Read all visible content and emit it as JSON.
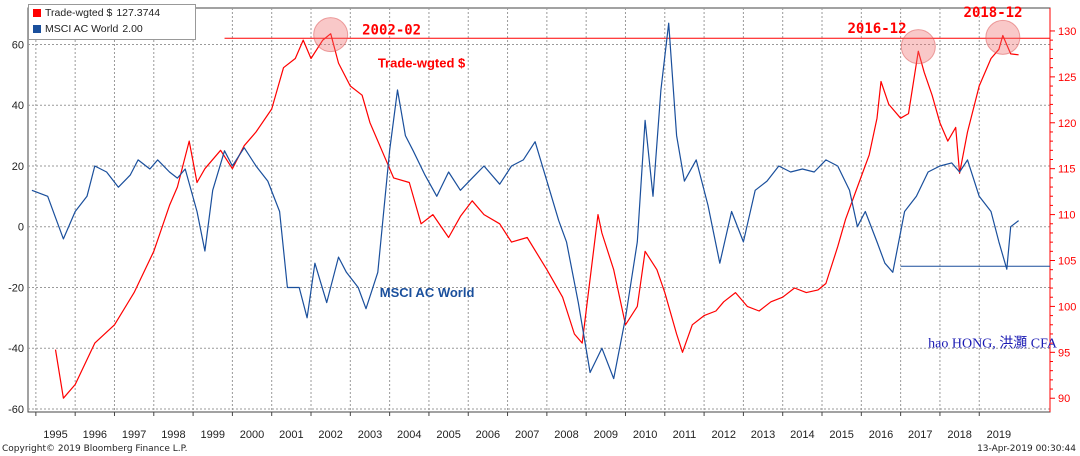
{
  "chart_data": {
    "type": "line",
    "legend": [
      {
        "label": "Trade-wgted $",
        "value": "127.3744",
        "color": "#ff0000"
      },
      {
        "label": "MSCI AC World",
        "value": "2.00",
        "color": "#1a4f9c"
      }
    ],
    "x_ticks": [
      "1995",
      "1996",
      "1997",
      "1998",
      "1999",
      "2000",
      "2001",
      "2002",
      "2003",
      "2004",
      "2005",
      "2006",
      "2007",
      "2008",
      "2009",
      "2010",
      "2011",
      "2012",
      "2013",
      "2014",
      "2015",
      "2016",
      "2017",
      "2018",
      "2019"
    ],
    "xlim": [
      1994.3,
      2020.3
    ],
    "left_axis": {
      "ticks": [
        -60,
        -40,
        -20,
        0,
        20,
        40,
        60
      ],
      "ylim": [
        -61,
        72
      ]
    },
    "right_axis": {
      "ticks": [
        90,
        95,
        100,
        105,
        110,
        115,
        120,
        125,
        130
      ],
      "ylim": [
        88.5,
        132.5
      ]
    },
    "series": [
      {
        "name": "Trade-wgted $",
        "axis": "right",
        "color": "#ff0000",
        "points": [
          [
            1995.0,
            95.3
          ],
          [
            1995.2,
            90.0
          ],
          [
            1995.5,
            91.5
          ],
          [
            1996.0,
            96
          ],
          [
            1996.5,
            98
          ],
          [
            1997.0,
            101.5
          ],
          [
            1997.5,
            106
          ],
          [
            1997.9,
            111
          ],
          [
            1998.1,
            113
          ],
          [
            1998.4,
            118
          ],
          [
            1998.6,
            113.5
          ],
          [
            1998.8,
            115
          ],
          [
            1999.2,
            117
          ],
          [
            1999.5,
            115
          ],
          [
            1999.8,
            117.5
          ],
          [
            2000.1,
            119
          ],
          [
            2000.5,
            121.5
          ],
          [
            2000.8,
            126
          ],
          [
            2001.1,
            127
          ],
          [
            2001.3,
            129
          ],
          [
            2001.5,
            127
          ],
          [
            2001.8,
            129
          ],
          [
            2002.0,
            129.7
          ],
          [
            2002.2,
            126.5
          ],
          [
            2002.5,
            124
          ],
          [
            2002.8,
            123
          ],
          [
            2003.0,
            120
          ],
          [
            2003.3,
            117
          ],
          [
            2003.6,
            114
          ],
          [
            2004.0,
            113.5
          ],
          [
            2004.3,
            109
          ],
          [
            2004.6,
            110
          ],
          [
            2005.0,
            107.5
          ],
          [
            2005.3,
            109.8
          ],
          [
            2005.6,
            111.5
          ],
          [
            2005.9,
            110
          ],
          [
            2006.3,
            109
          ],
          [
            2006.6,
            107
          ],
          [
            2007.0,
            107.5
          ],
          [
            2007.5,
            104
          ],
          [
            2007.9,
            101
          ],
          [
            2008.2,
            97
          ],
          [
            2008.4,
            96
          ],
          [
            2008.8,
            110
          ],
          [
            2008.9,
            108
          ],
          [
            2009.2,
            104
          ],
          [
            2009.5,
            98
          ],
          [
            2009.8,
            100
          ],
          [
            2010.0,
            106
          ],
          [
            2010.3,
            104
          ],
          [
            2010.5,
            101.5
          ],
          [
            2010.8,
            97
          ],
          [
            2010.95,
            95
          ],
          [
            2011.2,
            98
          ],
          [
            2011.5,
            99
          ],
          [
            2011.8,
            99.5
          ],
          [
            2012.0,
            100.5
          ],
          [
            2012.3,
            101.5
          ],
          [
            2012.6,
            100
          ],
          [
            2012.9,
            99.5
          ],
          [
            2013.2,
            100.5
          ],
          [
            2013.5,
            101
          ],
          [
            2013.8,
            102
          ],
          [
            2014.1,
            101.5
          ],
          [
            2014.4,
            101.8
          ],
          [
            2014.6,
            102.5
          ],
          [
            2014.9,
            106.5
          ],
          [
            2015.1,
            109.5
          ],
          [
            2015.4,
            113
          ],
          [
            2015.7,
            116.5
          ],
          [
            2015.9,
            120.5
          ],
          [
            2016.0,
            124.5
          ],
          [
            2016.2,
            122
          ],
          [
            2016.5,
            120.5
          ],
          [
            2016.7,
            121
          ],
          [
            2016.95,
            127.8
          ],
          [
            2017.1,
            125.5
          ],
          [
            2017.3,
            123
          ],
          [
            2017.5,
            120
          ],
          [
            2017.7,
            118
          ],
          [
            2017.9,
            119.5
          ],
          [
            2018.0,
            114.5
          ],
          [
            2018.2,
            119
          ],
          [
            2018.5,
            124
          ],
          [
            2018.8,
            127
          ],
          [
            2019.0,
            128
          ],
          [
            2019.1,
            129.5
          ],
          [
            2019.3,
            127.5
          ],
          [
            2019.5,
            127.4
          ]
        ]
      },
      {
        "name": "MSCI AC World",
        "axis": "left",
        "color": "#1a4f9c",
        "points": [
          [
            1994.4,
            12
          ],
          [
            1994.8,
            10
          ],
          [
            1995.0,
            3
          ],
          [
            1995.2,
            -4
          ],
          [
            1995.5,
            5
          ],
          [
            1995.8,
            10
          ],
          [
            1996.0,
            20
          ],
          [
            1996.3,
            18
          ],
          [
            1996.6,
            13
          ],
          [
            1996.9,
            17
          ],
          [
            1997.1,
            22
          ],
          [
            1997.4,
            19
          ],
          [
            1997.6,
            22
          ],
          [
            1997.9,
            18
          ],
          [
            1998.1,
            16
          ],
          [
            1998.3,
            19
          ],
          [
            1998.6,
            5
          ],
          [
            1998.8,
            -8
          ],
          [
            1999.0,
            12
          ],
          [
            1999.3,
            25
          ],
          [
            1999.5,
            20
          ],
          [
            1999.8,
            26
          ],
          [
            2000.1,
            20
          ],
          [
            2000.4,
            15
          ],
          [
            2000.7,
            5
          ],
          [
            2000.9,
            -20
          ],
          [
            2001.2,
            -20
          ],
          [
            2001.4,
            -30
          ],
          [
            2001.6,
            -12
          ],
          [
            2001.9,
            -25
          ],
          [
            2002.2,
            -10
          ],
          [
            2002.4,
            -15
          ],
          [
            2002.7,
            -20
          ],
          [
            2002.9,
            -27
          ],
          [
            2003.2,
            -15
          ],
          [
            2003.5,
            25
          ],
          [
            2003.7,
            45
          ],
          [
            2003.9,
            30
          ],
          [
            2004.1,
            25
          ],
          [
            2004.4,
            17
          ],
          [
            2004.7,
            10
          ],
          [
            2005.0,
            18
          ],
          [
            2005.3,
            12
          ],
          [
            2005.6,
            16
          ],
          [
            2005.9,
            20
          ],
          [
            2006.3,
            14
          ],
          [
            2006.6,
            20
          ],
          [
            2006.9,
            22
          ],
          [
            2007.2,
            28
          ],
          [
            2007.5,
            15
          ],
          [
            2007.8,
            2
          ],
          [
            2008.0,
            -5
          ],
          [
            2008.3,
            -25
          ],
          [
            2008.6,
            -48
          ],
          [
            2008.9,
            -40
          ],
          [
            2009.2,
            -50
          ],
          [
            2009.5,
            -30
          ],
          [
            2009.8,
            -5
          ],
          [
            2010.0,
            35
          ],
          [
            2010.2,
            10
          ],
          [
            2010.4,
            45
          ],
          [
            2010.6,
            67
          ],
          [
            2010.8,
            30
          ],
          [
            2011.0,
            15
          ],
          [
            2011.3,
            22
          ],
          [
            2011.6,
            7
          ],
          [
            2011.9,
            -12
          ],
          [
            2012.2,
            5
          ],
          [
            2012.5,
            -5
          ],
          [
            2012.8,
            12
          ],
          [
            2013.1,
            15
          ],
          [
            2013.4,
            20
          ],
          [
            2013.7,
            18
          ],
          [
            2014.0,
            19
          ],
          [
            2014.3,
            18
          ],
          [
            2014.6,
            22
          ],
          [
            2014.9,
            20
          ],
          [
            2015.2,
            12
          ],
          [
            2015.4,
            0
          ],
          [
            2015.6,
            5
          ],
          [
            2015.9,
            -5
          ],
          [
            2016.1,
            -12
          ],
          [
            2016.3,
            -15
          ],
          [
            2016.6,
            5
          ],
          [
            2016.9,
            10
          ],
          [
            2017.2,
            18
          ],
          [
            2017.5,
            20
          ],
          [
            2017.8,
            21
          ],
          [
            2018.0,
            18
          ],
          [
            2018.2,
            22
          ],
          [
            2018.5,
            10
          ],
          [
            2018.8,
            5
          ],
          [
            2019.0,
            -5
          ],
          [
            2019.2,
            -14
          ],
          [
            2019.3,
            0
          ],
          [
            2019.5,
            2
          ]
        ]
      }
    ],
    "reference_lines": [
      {
        "axis": "right",
        "y": 129.2,
        "x_start": 1999.3,
        "x_end": 2020.3,
        "color": "#ff0000"
      },
      {
        "axis": "left",
        "y": -13,
        "x_start": 2016.5,
        "x_end": 2020.3,
        "color": "#1a4f9c"
      }
    ],
    "highlight_circles": [
      {
        "x": 2002.0,
        "y": 129.6
      },
      {
        "x": 2016.95,
        "y": 128.3
      },
      {
        "x": 2019.1,
        "y": 129.3
      }
    ],
    "annotations": [
      {
        "text": "2002-02",
        "x": 2002.8,
        "y": 129.6,
        "color": "#ff0000",
        "weight": "bold",
        "size": 14,
        "font": "mono",
        "anchor": "start"
      },
      {
        "text": "2016-12",
        "x": 2016.65,
        "y": 129.8,
        "color": "#ff0000",
        "weight": "bold",
        "size": 14,
        "font": "mono",
        "anchor": "end"
      },
      {
        "text": "2018-12",
        "x": 2018.1,
        "y": 131.5,
        "color": "#ff0000",
        "weight": "bold",
        "size": 14,
        "font": "mono",
        "anchor": "start"
      },
      {
        "text": "Trade-wgted $",
        "x": 2003.2,
        "y": 126.0,
        "color": "#ff0000",
        "weight": "bold",
        "size": 13,
        "font": "sans",
        "anchor": "start"
      },
      {
        "text": "MSCI AC World",
        "x": 2003.25,
        "y": 101.0,
        "color": "#1a4f9c",
        "weight": "bold",
        "size": 13,
        "font": "sans",
        "anchor": "start"
      },
      {
        "text": "hao HONG, 洪灝 CFA",
        "x": 2017.2,
        "y": 95.5,
        "color": "#1a1ab3",
        "weight": "normal",
        "size": 14,
        "font": "serif",
        "anchor": "start"
      }
    ],
    "grid": true
  },
  "footer": {
    "copyright": "Copyright© 2019 Bloomberg Finance L.P.",
    "timestamp": "13-Apr-2019 00:30:44"
  }
}
